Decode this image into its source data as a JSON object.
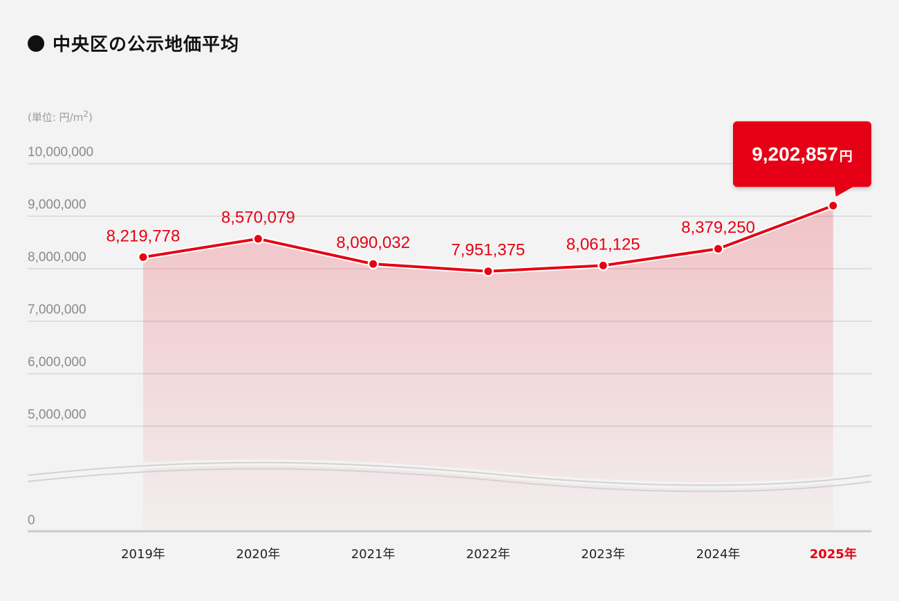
{
  "chart_data": {
    "type": "area",
    "title": "中央区の公示地価平均",
    "unit_label": "(単位: 円/m",
    "unit_sup": "2",
    "unit_close": ")",
    "categories": [
      "2019年",
      "2020年",
      "2021年",
      "2022年",
      "2023年",
      "2024年",
      "2025年"
    ],
    "values": [
      8219778,
      8570079,
      8090032,
      7951375,
      8061125,
      8379250,
      9202857
    ],
    "value_labels": [
      "8,219,778",
      "8,570,079",
      "8,090,032",
      "7,951,375",
      "8,061,125",
      "8,379,250",
      "9,202,857"
    ],
    "highlight_index": 6,
    "callout": {
      "value": "9,202,857",
      "unit": "円"
    },
    "y_ticks": [
      {
        "value": 10000000,
        "label": "10,000,000"
      },
      {
        "value": 9000000,
        "label": "9,000,000"
      },
      {
        "value": 8000000,
        "label": "8,000,000"
      },
      {
        "value": 7000000,
        "label": "7,000,000"
      },
      {
        "value": 6000000,
        "label": "6,000,000"
      },
      {
        "value": 5000000,
        "label": "5,000,000"
      },
      {
        "value": 0,
        "label": "0"
      }
    ],
    "ylim": [
      0,
      10000000
    ],
    "axis_break": true,
    "grid": true,
    "colors": {
      "line": "#e60012",
      "fill": "#e60012",
      "grid": "#d6d6d6",
      "callout": "#e60012"
    }
  }
}
